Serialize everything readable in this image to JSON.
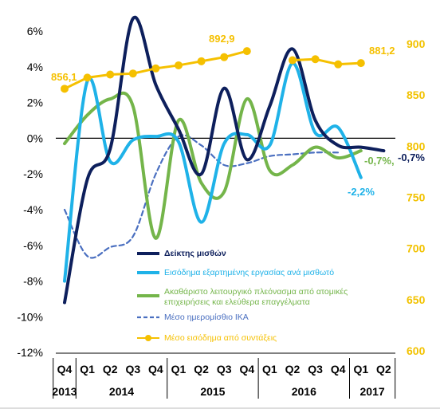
{
  "chart_data": {
    "type": "line",
    "left_axis": {
      "ticks": [
        "6%",
        "4%",
        "2%",
        "0%",
        "-2%",
        "-4%",
        "-6%",
        "-8%",
        "-10%",
        "-12%"
      ],
      "range": [
        -12,
        7
      ]
    },
    "right_axis": {
      "ticks": [
        "900",
        "850",
        "800",
        "750",
        "700",
        "650",
        "600"
      ],
      "range": [
        600,
        910
      ]
    },
    "quarters": [
      "Q4",
      "Q1",
      "Q2",
      "Q3",
      "Q4",
      "Q1",
      "Q2",
      "Q3",
      "Q4",
      "Q1",
      "Q2",
      "Q3",
      "Q4",
      "Q1",
      "Q2"
    ],
    "years": [
      {
        "label": "2013",
        "from": 0,
        "to": 0
      },
      {
        "label": "2014",
        "from": 1,
        "to": 4
      },
      {
        "label": "2015",
        "from": 5,
        "to": 8
      },
      {
        "label": "2016",
        "from": 9,
        "to": 12
      },
      {
        "label": "2017",
        "from": 13,
        "to": 14
      }
    ],
    "series": [
      {
        "name": "Δείκτης μισθών",
        "axis": "left",
        "color": "#0d1f5c",
        "style": "solid",
        "values": [
          -9.2,
          -2.3,
          -0.6,
          6.7,
          3.0,
          0.5,
          -2.0,
          2.8,
          -1.2,
          1.8,
          5.0,
          1.0,
          -0.4,
          -0.5,
          -0.7
        ]
      },
      {
        "name": "Εισόδημα εξαρτημένης εργασίας ανά μισθωτό",
        "axis": "left",
        "color": "#1fb2e8",
        "style": "solid",
        "values": [
          -8.0,
          3.2,
          -1.3,
          -0.1,
          0.1,
          -0.2,
          -4.7,
          -0.3,
          0.2,
          -0.4,
          4.2,
          0.3,
          0.6,
          -2.2,
          null
        ]
      },
      {
        "name": "Ακαθάριστο λειτουργικό πλεόνασμα από ατομικές επιχειρήσεις και ελεύθερα επαγγέλματα",
        "axis": "left",
        "color": "#74b54a",
        "style": "solid",
        "values": [
          -0.3,
          1.3,
          2.2,
          1.8,
          -5.6,
          1.0,
          -2.5,
          -3.0,
          2.2,
          -1.8,
          -1.5,
          -0.5,
          -1.1,
          -0.7,
          null
        ]
      },
      {
        "name": "Μέσο ημερομίσθιο ΙΚΑ",
        "axis": "left",
        "color": "#4a6fc0",
        "style": "dashed",
        "values": [
          -4.0,
          -6.6,
          -6.1,
          -5.5,
          -2.0,
          0.1,
          -0.4,
          -1.5,
          -1.4,
          -1.0,
          -0.9,
          -0.8,
          -0.8,
          null,
          null
        ]
      },
      {
        "name": "Μέσο εισόδημα από συντάξεις",
        "axis": "right",
        "color": "#f5c000",
        "style": "dots",
        "values": [
          856.1,
          867,
          870,
          871,
          876,
          879,
          883,
          887,
          892.9,
          null,
          884,
          885,
          880,
          881.2,
          null
        ]
      }
    ],
    "end_labels": [
      {
        "text": "-0,7%",
        "series": 0,
        "color": "#0d1f5c"
      },
      {
        "text": "-0,7%,",
        "series": 2,
        "color": "#74b54a"
      },
      {
        "text": "-2,2%",
        "series": 1,
        "color": "#1fb2e8"
      },
      {
        "text": "856,1",
        "series": 4,
        "color": "#f5c000"
      },
      {
        "text": "892,9",
        "series": 4,
        "color": "#f5c000"
      },
      {
        "text": "881,2",
        "series": 4,
        "color": "#f5c000"
      }
    ]
  }
}
